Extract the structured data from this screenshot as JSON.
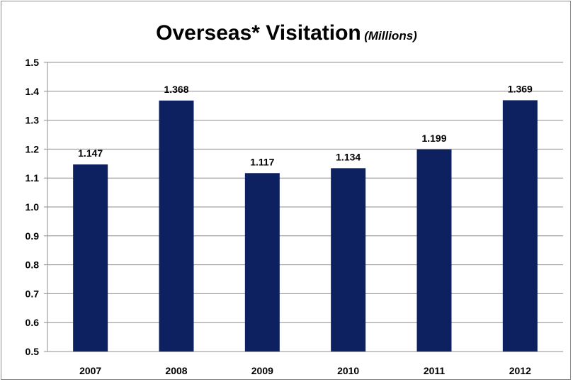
{
  "chart_data": {
    "type": "bar",
    "title": "Overseas* Visitation",
    "subtitle": "(Millions)",
    "categories": [
      "2007",
      "2008",
      "2009",
      "2010",
      "2011",
      "2012"
    ],
    "values": [
      1.147,
      1.368,
      1.117,
      1.134,
      1.199,
      1.369
    ],
    "value_labels": [
      "1.147",
      "1.368",
      "1.117",
      "1.134",
      "1.199",
      "1.369"
    ],
    "yticks": [
      "0.5",
      "0.6",
      "0.7",
      "0.8",
      "0.9",
      "1.0",
      "1.1",
      "1.2",
      "1.3",
      "1.4",
      "1.5"
    ],
    "ylim": [
      0.5,
      1.5
    ],
    "grid": true,
    "bar_color": "#0d2060"
  }
}
